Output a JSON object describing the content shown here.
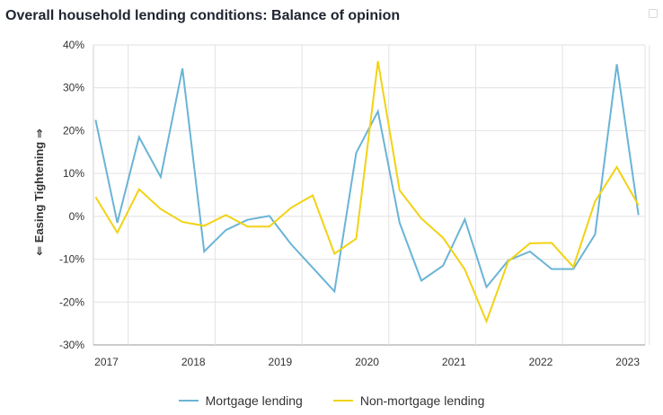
{
  "chart_data": {
    "type": "line",
    "title": "Overall household lending conditions: Balance of opinion",
    "ylabel": "⇐ Easing Tightening ⇒",
    "ylim": [
      -30,
      40
    ],
    "yticks": [
      "40%",
      "30%",
      "20%",
      "10%",
      "0%",
      "-10%",
      "-20%",
      "-30%"
    ],
    "ytick_values": [
      40,
      30,
      20,
      10,
      0,
      -10,
      -20,
      -30
    ],
    "xticks": [
      "2017",
      "2018",
      "2019",
      "2020",
      "2021",
      "2022",
      "2023"
    ],
    "xtick_values": [
      2017,
      2018,
      2019,
      2020,
      2021,
      2022,
      2023
    ],
    "xlim": [
      2016.85,
      2023.2
    ],
    "grid": true,
    "legend_position": "bottom",
    "x": [
      2016.875,
      2017.125,
      2017.375,
      2017.625,
      2017.875,
      2018.125,
      2018.375,
      2018.625,
      2018.875,
      2019.125,
      2019.375,
      2019.625,
      2019.875,
      2020.125,
      2020.375,
      2020.625,
      2020.875,
      2021.125,
      2021.375,
      2021.625,
      2021.875,
      2022.125,
      2022.375,
      2022.625,
      2022.875,
      2023.125
    ],
    "series": [
      {
        "name": "Mortgage lending",
        "color": "#6ab4d6",
        "values": [
          22.5,
          -1.5,
          18.5,
          9.2,
          34.5,
          -8.2,
          -3.2,
          -0.8,
          0.1,
          -6.5,
          -12,
          -17.5,
          14.8,
          24.5,
          -1.5,
          -15,
          -11.5,
          -0.7,
          -16.5,
          -10.3,
          -8.2,
          -12.3,
          -12.3,
          -4.2,
          35.5,
          0.3
        ]
      },
      {
        "name": "Non-mortgage lending",
        "color": "#f2d214",
        "values": [
          4.5,
          -3.8,
          6.3,
          1.7,
          -1.3,
          -2.2,
          0.3,
          -2.4,
          -2.4,
          2.0,
          4.9,
          -8.7,
          -5.2,
          36.2,
          6.1,
          -0.5,
          -5.0,
          -12.4,
          -24.5,
          -10.5,
          -6.3,
          -6.2,
          -11.8,
          3.5,
          11.5,
          2.6
        ]
      }
    ]
  }
}
